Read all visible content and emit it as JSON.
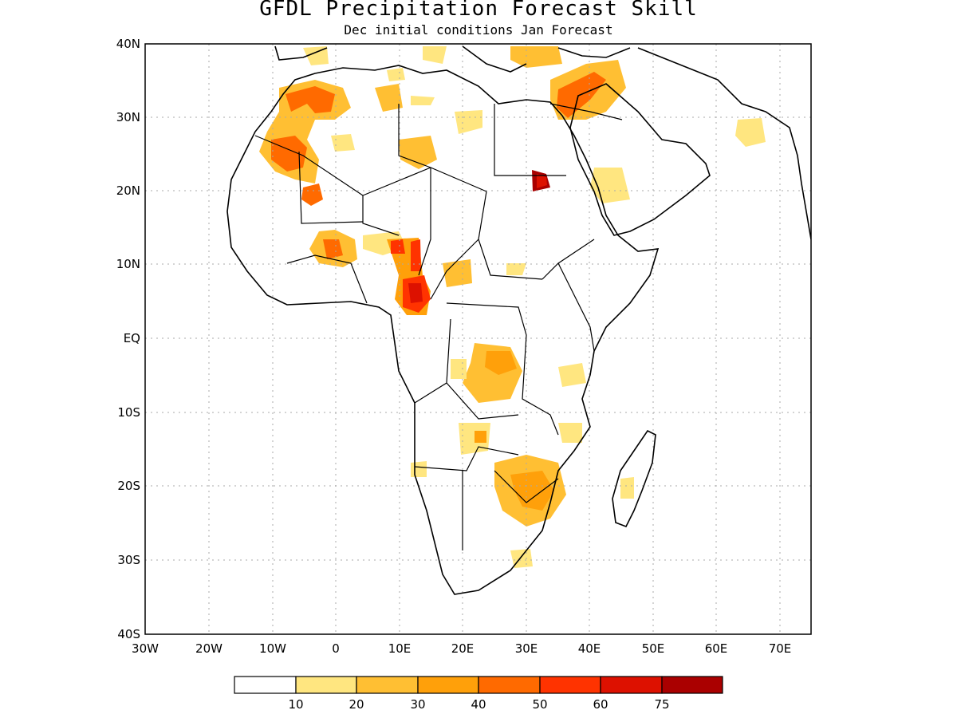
{
  "title": "GFDL Precipitation Forecast Skill",
  "subtitle": "Dec initial conditions  Jan Forecast",
  "map": {
    "region": "Africa",
    "lon_range": [
      -30,
      75
    ],
    "lat_range": [
      -40,
      40
    ],
    "gridlines": true,
    "lat_labels": [
      "40N",
      "30N",
      "20N",
      "10N",
      "EQ",
      "10S",
      "20S",
      "30S",
      "40S"
    ],
    "lon_labels": [
      "30W",
      "20W",
      "10W",
      "0",
      "10E",
      "20E",
      "30E",
      "40E",
      "50E",
      "60E",
      "70E"
    ]
  },
  "legend": {
    "colors": [
      "#ffffff",
      "#ffe680",
      "#ffbf33",
      "#ffa00a",
      "#ff6a00",
      "#ff3300",
      "#dd1100",
      "#aa0000"
    ],
    "labels": [
      "10",
      "20",
      "30",
      "40",
      "50",
      "60",
      "75"
    ]
  },
  "skill_regions": [
    {
      "lon": -3,
      "lat": 32,
      "level": 4
    },
    {
      "lon": -8,
      "lat": 26,
      "level": 4
    },
    {
      "lon": -4,
      "lat": 20,
      "level": 3
    },
    {
      "lon": 13,
      "lat": 6,
      "level": 5
    },
    {
      "lon": 13,
      "lat": 12,
      "level": 4
    },
    {
      "lon": 31,
      "lat": 21,
      "level": 7
    },
    {
      "lon": 37,
      "lat": 31,
      "level": 4
    },
    {
      "lon": 30,
      "lat": -21,
      "level": 3
    },
    {
      "lon": 28,
      "lat": -3,
      "level": 1
    },
    {
      "lon": 12,
      "lat": 26,
      "level": 2
    },
    {
      "lon": -1,
      "lat": 11,
      "level": 3
    }
  ]
}
